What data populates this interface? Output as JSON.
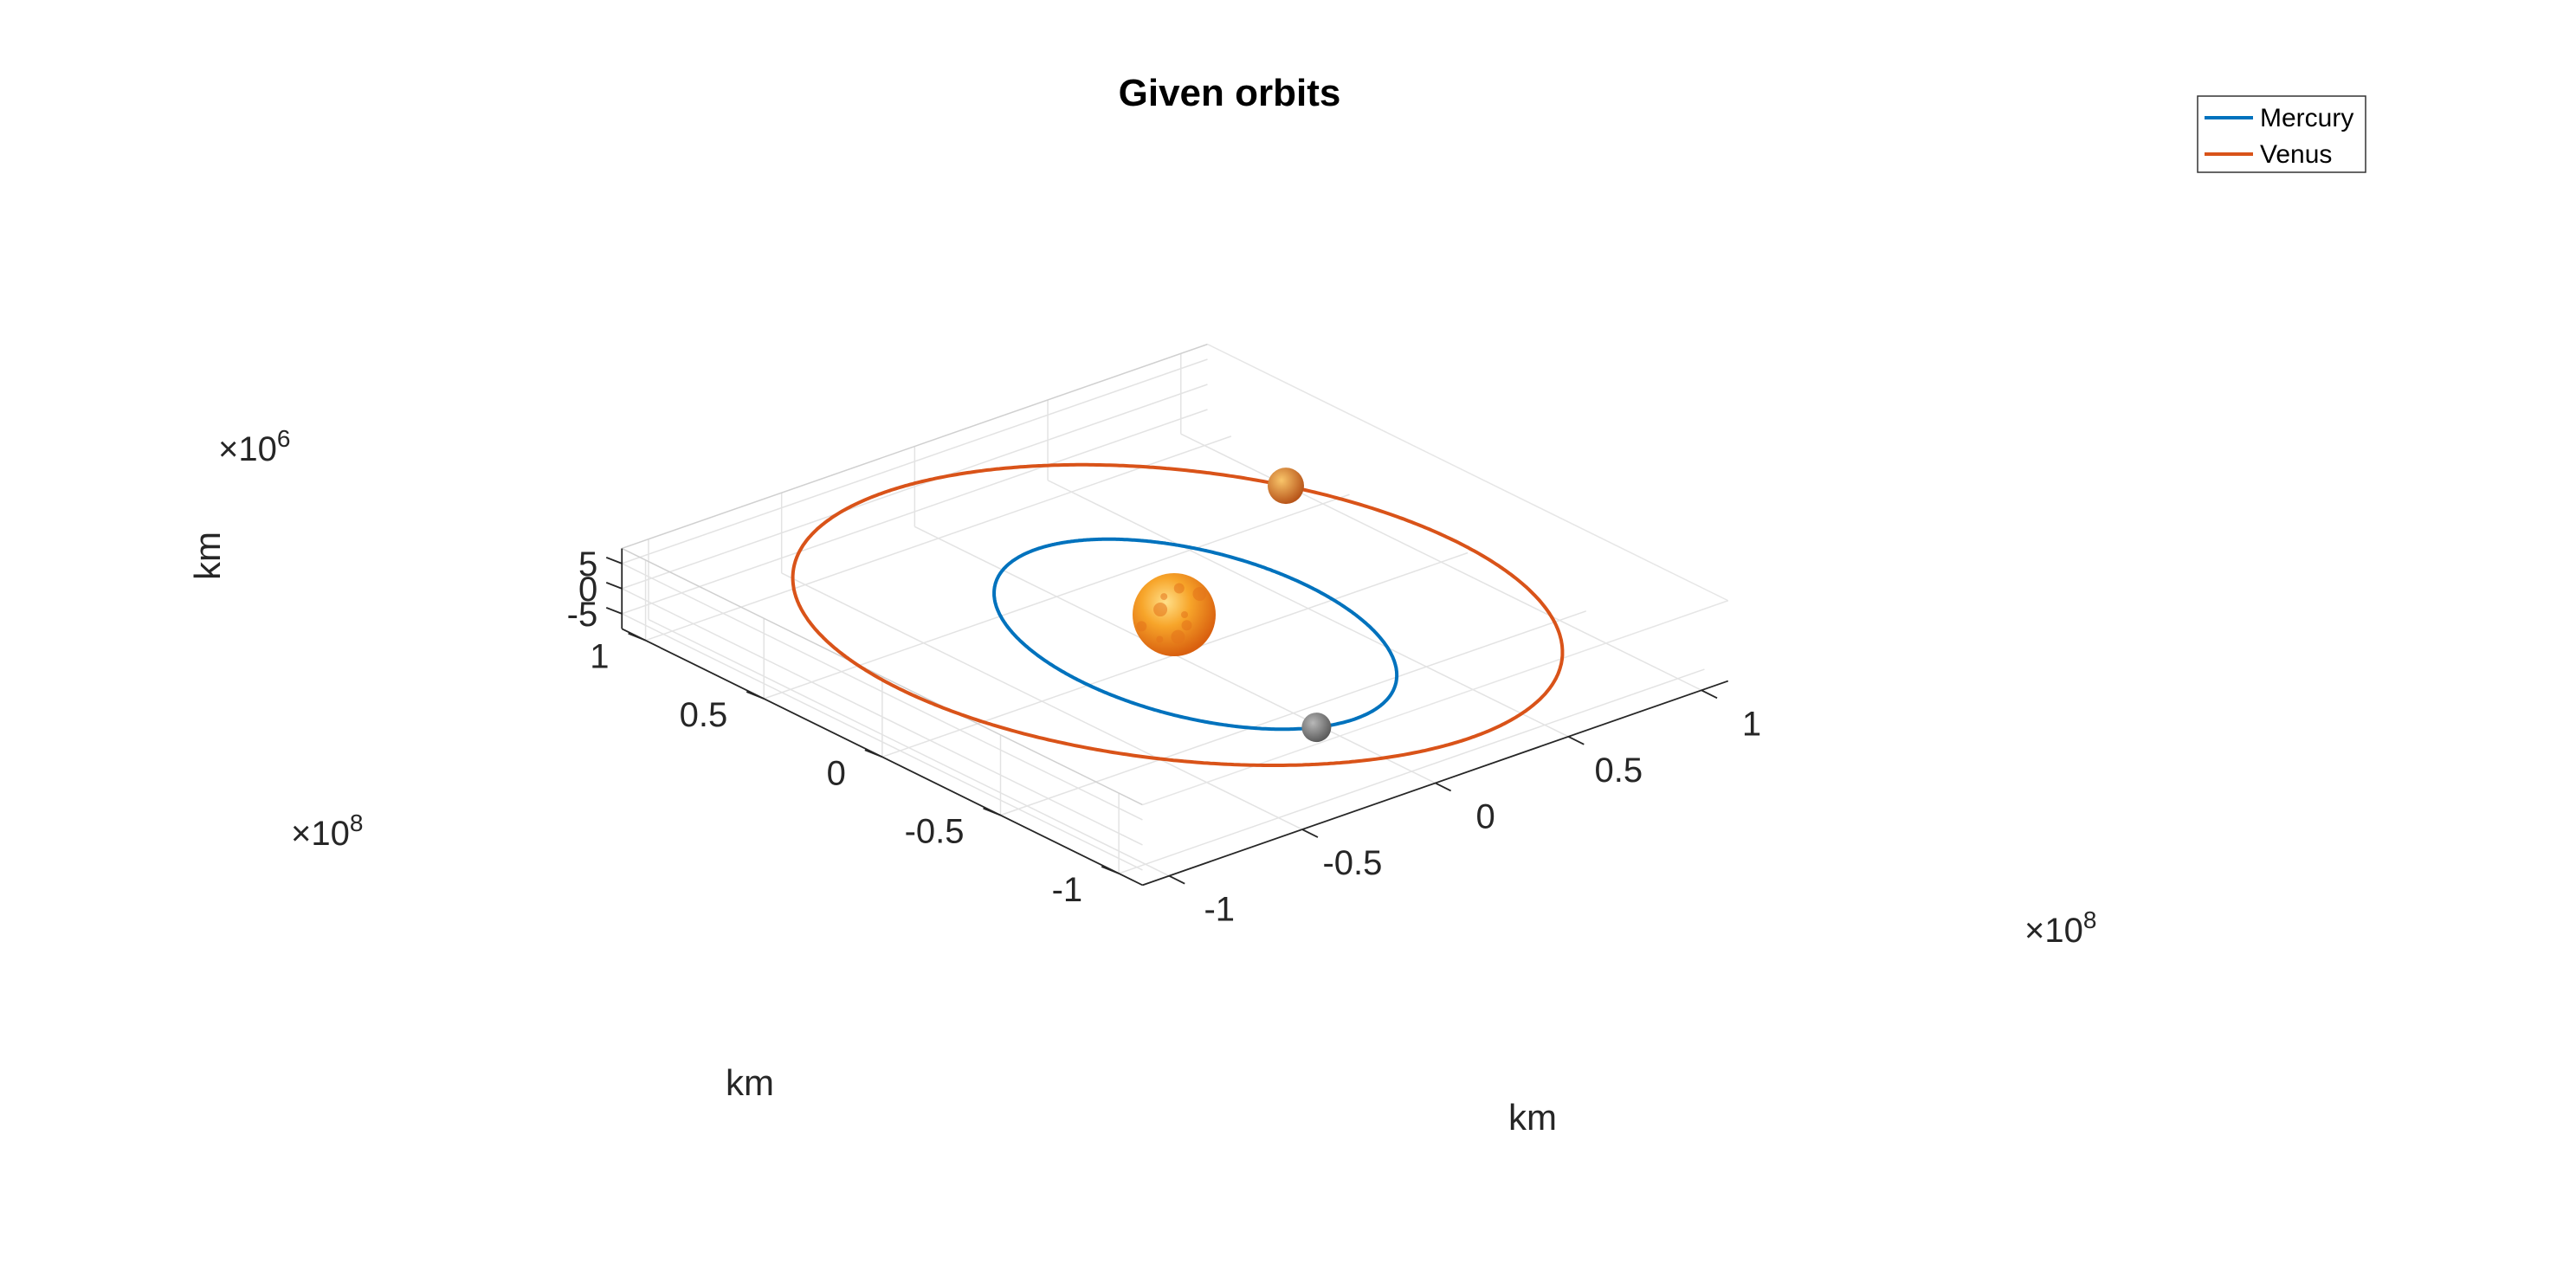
{
  "chart_data": {
    "type": "line",
    "subtype": "3d-orbit",
    "title": "Given orbits",
    "xlabel": "km",
    "ylabel": "km",
    "zlabel": "km",
    "x_ticks": [
      "-1",
      "-0.5",
      "0",
      "0.5",
      "1"
    ],
    "y_ticks": [
      "-1",
      "-0.5",
      "0",
      "0.5",
      "1"
    ],
    "z_ticks": [
      "-5",
      "0",
      "5"
    ],
    "x_exponent": "8",
    "y_exponent": "8",
    "z_exponent": "6",
    "exponent_prefix": "×10",
    "xlim": [
      -110000000.0,
      110000000.0
    ],
    "ylim": [
      -110000000.0,
      110000000.0
    ],
    "zlim": [
      -8000000.0,
      8000000.0
    ],
    "grid": true,
    "legend_position": "top-right",
    "series": [
      {
        "name": "Mercury",
        "color": "#0072BD",
        "orbit": {
          "semi_major_axis_km": 57900000.0,
          "eccentricity": 0.2056,
          "arg_periapsis_deg": 29.1,
          "inclination_deg": 7.0,
          "ascending_node_deg": 48.3
        },
        "body_position_true_anomaly_deg": 186
      },
      {
        "name": "Venus",
        "color": "#D95319",
        "orbit": {
          "semi_major_axis_km": 108200000.0,
          "eccentricity": 0.0068,
          "arg_periapsis_deg": 54.9,
          "inclination_deg": 3.39,
          "ascending_node_deg": 76.7
        },
        "body_position_true_anomaly_deg": 260
      }
    ],
    "bodies": [
      {
        "name": "Sun",
        "icon": "sun-sphere",
        "color": "#F39A1E"
      },
      {
        "name": "Mercury",
        "icon": "mercury-sphere",
        "color": "#8C8C8C"
      },
      {
        "name": "Venus",
        "icon": "venus-sphere",
        "color": "#E38A2A"
      }
    ]
  }
}
